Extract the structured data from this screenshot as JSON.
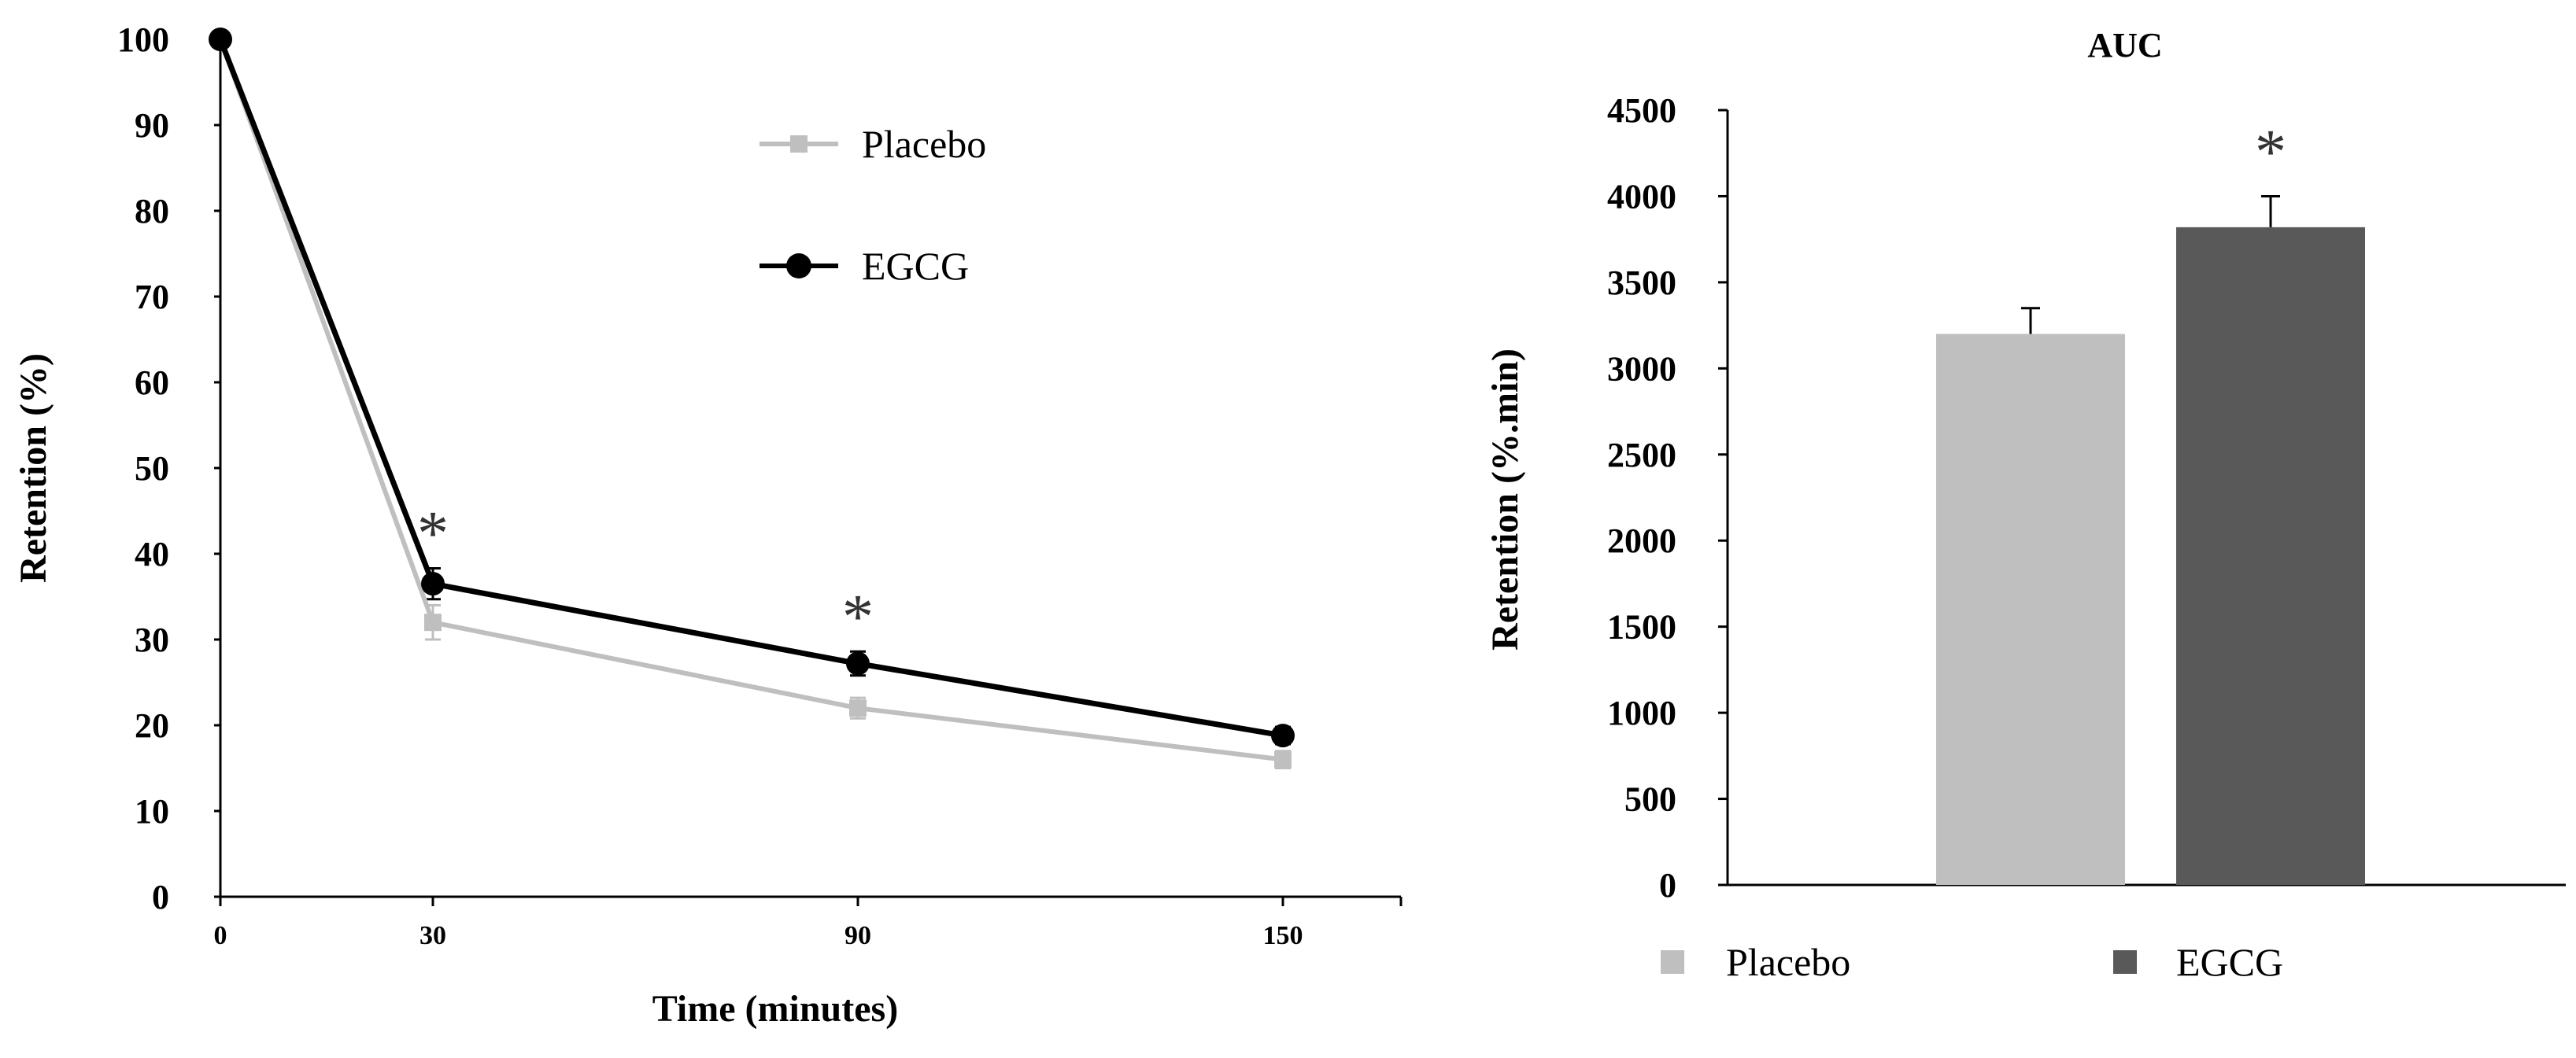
{
  "chart_data": [
    {
      "type": "line",
      "title": "",
      "xlabel": "Time (minutes)",
      "ylabel": "Retention (%)",
      "categories": [
        "0",
        "30",
        "90",
        "150"
      ],
      "ylim": [
        0,
        100
      ],
      "yticks": [
        "0",
        "10",
        "20",
        "30",
        "40",
        "50",
        "60",
        "70",
        "80",
        "90",
        "100"
      ],
      "series": [
        {
          "name": "Placebo",
          "color": "#bfbfbf",
          "marker": "square",
          "values": [
            100,
            32,
            22,
            16
          ],
          "errors": [
            0,
            2,
            1.2,
            1
          ]
        },
        {
          "name": "EGCG",
          "color": "#000000",
          "marker": "circle",
          "values": [
            100,
            36.5,
            27.2,
            18.8
          ],
          "errors": [
            0,
            1.8,
            1.4,
            1
          ]
        }
      ],
      "significance": [
        {
          "category": "30",
          "label": "*"
        },
        {
          "category": "90",
          "label": "*"
        }
      ],
      "legend": "top-right",
      "grid": false
    },
    {
      "type": "bar",
      "title": "AUC",
      "xlabel": "",
      "ylabel": "Retention (%.min)",
      "categories": [
        "Placebo",
        "EGCG"
      ],
      "values": [
        3200,
        3820
      ],
      "errors": [
        150,
        180
      ],
      "colors": [
        "#bfbfbf",
        "#595959"
      ],
      "ylim": [
        0,
        4500
      ],
      "yticks": [
        "0",
        "500",
        "1000",
        "1500",
        "2000",
        "2500",
        "3000",
        "3500",
        "4000",
        "4500"
      ],
      "significance": [
        {
          "category": "EGCG",
          "label": "*"
        }
      ],
      "legend": "bottom",
      "grid": false
    }
  ]
}
